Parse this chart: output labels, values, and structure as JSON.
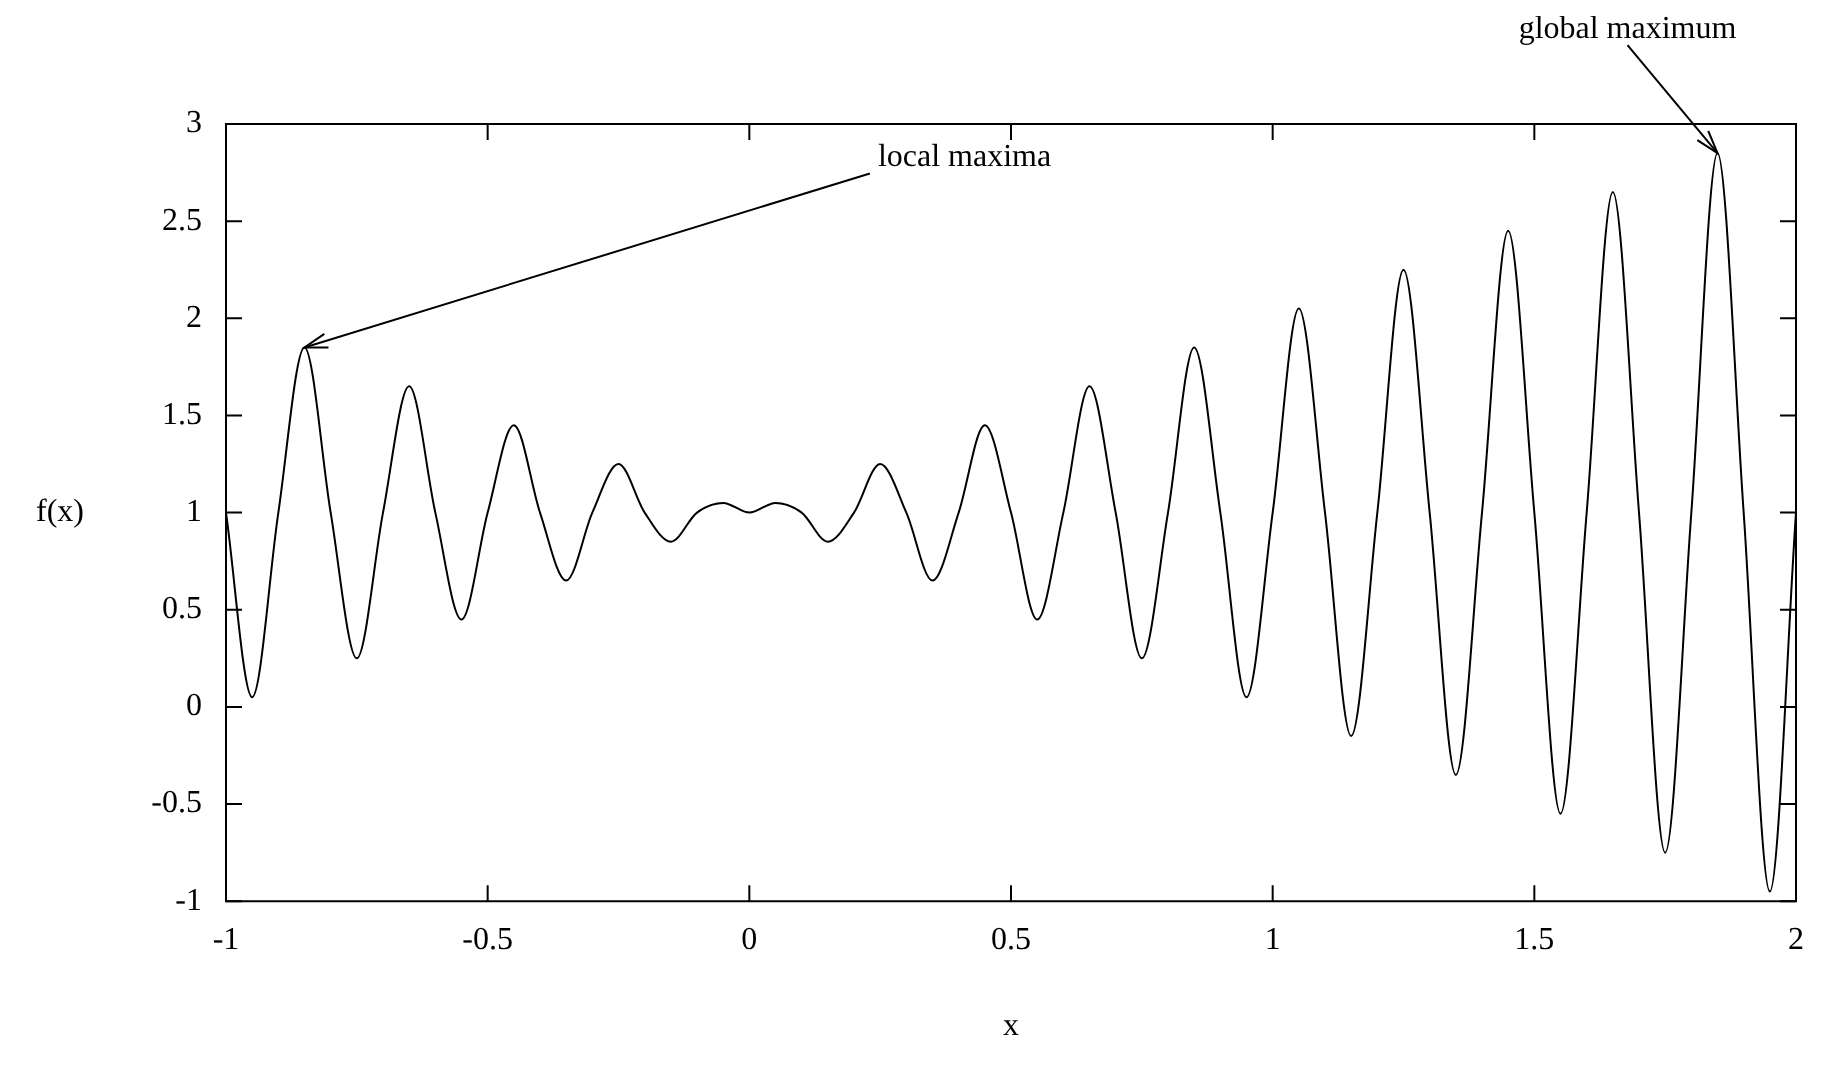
{
  "chart_data": {
    "type": "line",
    "xlabel": "x",
    "ylabel": "f(x)",
    "x": [
      -1,
      -0.95,
      -0.9,
      -0.85,
      -0.8,
      -0.75,
      -0.7,
      -0.65,
      -0.6,
      -0.55,
      -0.5,
      -0.45,
      -0.4,
      -0.35,
      -0.3,
      -0.25,
      -0.2,
      -0.15,
      -0.1,
      -0.05,
      0,
      0.05,
      0.1,
      0.15,
      0.2,
      0.25,
      0.3,
      0.35,
      0.4,
      0.45,
      0.5,
      0.55,
      0.6,
      0.65,
      0.7,
      0.75,
      0.8,
      0.85,
      0.9,
      0.95,
      1,
      1.05,
      1.1,
      1.15,
      1.2,
      1.25,
      1.3,
      1.35,
      1.4,
      1.45,
      1.5,
      1.55,
      1.6,
      1.65,
      1.7,
      1.75,
      1.8,
      1.85,
      1.9,
      1.95,
      2
    ],
    "series": [
      {
        "color": "#000000",
        "values": [
          1,
          0.05,
          1,
          1.85,
          1,
          0.25,
          1,
          1.65,
          1,
          0.45,
          1,
          1.45,
          1,
          0.65,
          1,
          1.25,
          1,
          0.85,
          1,
          1.05,
          1,
          1.05,
          1,
          0.85,
          1,
          1.25,
          1,
          0.65,
          1,
          1.45,
          1,
          0.45,
          1,
          1.65,
          1,
          0.25,
          1,
          1.85,
          1,
          0.05,
          1,
          2.05,
          1,
          -0.15,
          1,
          2.25,
          1,
          -0.35,
          1,
          2.45,
          1,
          -0.55,
          1,
          2.65,
          1,
          -0.75,
          1,
          2.85,
          1,
          -0.95,
          1
        ]
      }
    ],
    "xlim": [
      -1,
      2
    ],
    "xticks": [
      -1,
      -0.5,
      0,
      0.5,
      1,
      1.5,
      2
    ],
    "ylim": [
      -1,
      3
    ],
    "yticks": [
      -1,
      -0.5,
      0,
      0.5,
      1,
      1.5,
      2,
      2.5,
      3
    ],
    "grid": false,
    "legend": false,
    "marker": "none",
    "line_style": "solid",
    "annotations": [
      {
        "text": "local maxima",
        "x": -0.85,
        "y": 1.85
      },
      {
        "text": "global maximum",
        "x": 1.85,
        "y": 2.85
      }
    ]
  }
}
